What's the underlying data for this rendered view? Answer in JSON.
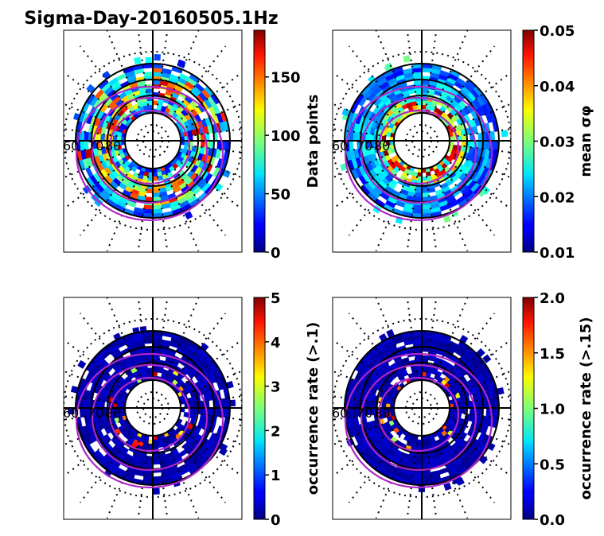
{
  "figure": {
    "title": "Sigma-Day-20160505.1Hz"
  },
  "chart_data": [
    {
      "type": "heatmap",
      "projection": "polar",
      "panel": "top-left",
      "colormap": "jet",
      "latitude_ring_labels": [
        "60",
        "70",
        "80"
      ],
      "colorbar": {
        "label": "Data points",
        "range": [
          0,
          190
        ],
        "ticks": [
          0,
          50,
          100,
          150
        ],
        "tick_labels": [
          "0",
          "50",
          "100",
          "150"
        ]
      },
      "data_range": [
        0,
        190
      ]
    },
    {
      "type": "heatmap",
      "projection": "polar",
      "panel": "top-right",
      "colormap": "jet",
      "latitude_ring_labels": [
        "60",
        "70",
        "80"
      ],
      "colorbar": {
        "label": "mean σφ",
        "range": [
          0.01,
          0.05
        ],
        "ticks": [
          0.01,
          0.02,
          0.03,
          0.04,
          0.05
        ],
        "tick_labels": [
          "0.01",
          "0.02",
          "0.03",
          "0.04",
          "0.05"
        ]
      },
      "data_range": [
        0.01,
        0.05
      ]
    },
    {
      "type": "heatmap",
      "projection": "polar",
      "panel": "bottom-left",
      "colormap": "jet",
      "latitude_ring_labels": [
        "60",
        "70",
        "80"
      ],
      "colorbar": {
        "label": "occurrence rate (>.1)",
        "range": [
          0,
          5
        ],
        "ticks": [
          0,
          1,
          2,
          3,
          4,
          5
        ],
        "tick_labels": [
          "0",
          "1",
          "2",
          "3",
          "4",
          "5"
        ]
      },
      "data_range": [
        0,
        5
      ]
    },
    {
      "type": "heatmap",
      "projection": "polar",
      "panel": "bottom-right",
      "colormap": "jet",
      "latitude_ring_labels": [
        "60",
        "70",
        "80"
      ],
      "colorbar": {
        "label": "occurrence rate (>.15)",
        "range": [
          0,
          2
        ],
        "ticks": [
          0,
          0.5,
          1,
          1.5,
          2
        ],
        "tick_labels": [
          "0.0",
          "0.5",
          "1.0",
          "1.5",
          "2.0"
        ]
      },
      "data_range": [
        0,
        2
      ]
    }
  ]
}
